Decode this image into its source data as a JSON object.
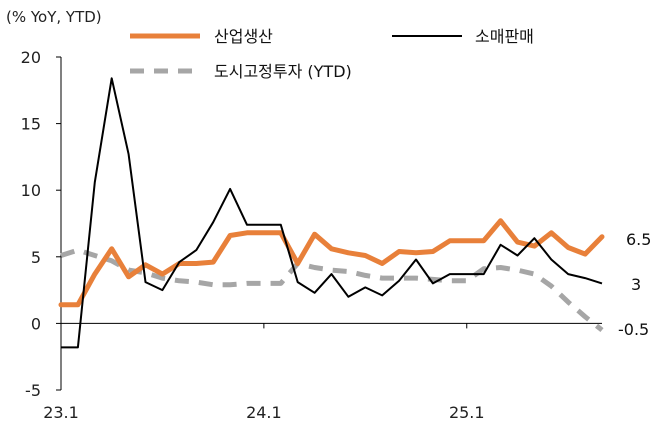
{
  "chart_data": {
    "type": "line",
    "unit_label": "(% YoY, YTD)",
    "title": "",
    "xlabel": "",
    "ylabel": "",
    "ylim": [
      -5,
      20
    ],
    "yticks": [
      -5,
      0,
      5,
      10,
      15,
      20
    ],
    "x_tick_labels": [
      {
        "label": "23.1",
        "index": 0
      },
      {
        "label": "24.1",
        "index": 12
      },
      {
        "label": "25.1",
        "index": 24
      }
    ],
    "legend": [
      {
        "label": "산업생산",
        "series": 0
      },
      {
        "label": "소매판매",
        "series": 1
      },
      {
        "label": "도시고정투자 (YTD)",
        "series": 2
      }
    ],
    "end_labels": [
      {
        "label": "6.5",
        "series": 0
      },
      {
        "label": "3",
        "series": 1
      },
      {
        "label": "-0.5",
        "series": 2
      }
    ],
    "x": [
      "23.1",
      "23.2",
      "23.3",
      "23.4",
      "23.5",
      "23.6",
      "23.7",
      "23.8",
      "23.9",
      "23.10",
      "23.11",
      "23.12",
      "24.1",
      "24.2",
      "24.3",
      "24.4",
      "24.5",
      "24.6",
      "24.7",
      "24.8",
      "24.9",
      "24.10",
      "24.11",
      "24.12",
      "25.1",
      "25.2",
      "25.3",
      "25.4",
      "25.5",
      "25.6",
      "25.7",
      "25.8",
      "25.9"
    ],
    "series": [
      {
        "name": "산업생산",
        "color": "#E8803A",
        "style": "solid-thick",
        "values": [
          1.4,
          1.4,
          3.7,
          5.6,
          3.5,
          4.4,
          3.7,
          4.5,
          4.5,
          4.6,
          6.6,
          6.8,
          6.8,
          6.8,
          4.5,
          6.7,
          5.6,
          5.3,
          5.1,
          4.5,
          5.4,
          5.3,
          5.4,
          6.2,
          6.2,
          6.2,
          7.7,
          6.1,
          5.8,
          6.8,
          5.7,
          5.2,
          6.5
        ]
      },
      {
        "name": "소매판매",
        "color": "#000000",
        "style": "solid-thin",
        "values": [
          -1.8,
          -1.8,
          10.6,
          18.4,
          12.7,
          3.1,
          2.5,
          4.6,
          5.5,
          7.6,
          10.1,
          7.4,
          7.4,
          7.4,
          3.1,
          2.3,
          3.7,
          2.0,
          2.7,
          2.1,
          3.2,
          4.8,
          3.0,
          3.7,
          3.7,
          3.7,
          5.9,
          5.1,
          6.4,
          4.8,
          3.7,
          3.4,
          3.0
        ]
      },
      {
        "name": "도시고정투자 (YTD)",
        "color": "#A6A6A6",
        "style": "dashed",
        "values": [
          5.1,
          5.5,
          5.1,
          4.7,
          4.0,
          3.8,
          3.4,
          3.2,
          3.1,
          2.9,
          2.9,
          3.0,
          3.0,
          3.0,
          4.5,
          4.2,
          4.0,
          3.9,
          3.6,
          3.4,
          3.4,
          3.4,
          3.3,
          3.2,
          3.2,
          4.1,
          4.2,
          4.0,
          3.7,
          2.8,
          1.6,
          0.5,
          -0.5
        ]
      }
    ]
  }
}
